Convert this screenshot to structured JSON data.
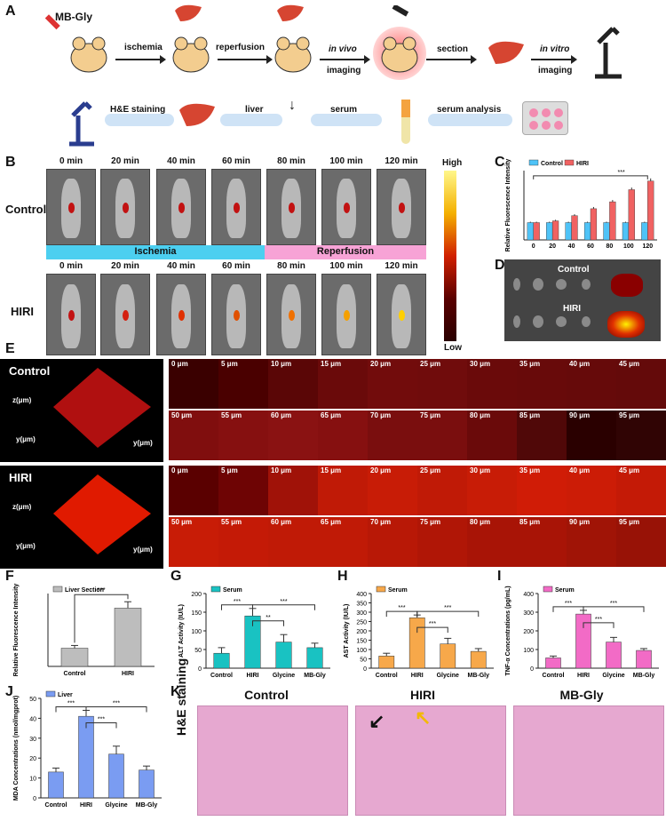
{
  "panels": {
    "A": "A",
    "B": "B",
    "C": "C",
    "D": "D",
    "E": "E",
    "F": "F",
    "G": "G",
    "H": "H",
    "I": "I",
    "J": "J",
    "K": "K"
  },
  "schematic": {
    "probe": "MB-Gly",
    "steps": [
      "ischemia",
      "reperfusion",
      "in vivo",
      "imaging",
      "section",
      "in vitro",
      "imaging"
    ],
    "bottom": [
      "H&E staining",
      "liver",
      "serum",
      "serum analysis"
    ]
  },
  "panel_b": {
    "times": [
      "0 min",
      "20 min",
      "40 min",
      "60 min",
      "80 min",
      "100 min",
      "120 min"
    ],
    "rows": [
      "Control",
      "HIRI"
    ],
    "phases": [
      "Ischemia",
      "Reperfusion"
    ],
    "scale": {
      "high": "High",
      "low": "Low"
    }
  },
  "panel_d": {
    "control": "Control",
    "hiri": "HIRI"
  },
  "panel_e": {
    "rows": [
      "Control",
      "HIRI"
    ],
    "depths": [
      "0 μm",
      "5 μm",
      "10 μm",
      "15 μm",
      "20 μm",
      "25 μm",
      "30 μm",
      "35 μm",
      "40 μm",
      "45 μm",
      "50 μm",
      "55 μm",
      "60 μm",
      "65 μm",
      "70 μm",
      "75 μm",
      "80 μm",
      "85 μm",
      "90 μm",
      "95 μm"
    ],
    "axes": {
      "z": "z(μm)",
      "y": "y(μm)",
      "ticks": [
        "0",
        "100",
        "200",
        "300",
        "400",
        "500",
        "600",
        "700"
      ]
    }
  },
  "panel_k": {
    "titles": [
      "Control",
      "HIRI",
      "MB-Gly"
    ],
    "side": "H&E staining"
  },
  "colors": {
    "control": "#4fc3f7",
    "hiri": "#f06262",
    "teal": "#19c2c2",
    "orange": "#f7a84a",
    "pink": "#f26bc6",
    "blue": "#7a9cf2",
    "gray": "#bdbdbd",
    "phase_ischemia": "#4ccff0",
    "phase_reperfusion": "#f7a3d6"
  },
  "chart_data": [
    {
      "id": "C",
      "type": "bar",
      "categories": [
        "0",
        "20",
        "40",
        "60",
        "80",
        "100",
        "120"
      ],
      "series": [
        {
          "name": "Control",
          "values": [
            1.0,
            1.0,
            1.0,
            1.0,
            1.0,
            1.0,
            1.0
          ],
          "err": [
            0.05,
            0.05,
            0.05,
            0.05,
            0.05,
            0.05,
            0.05
          ]
        },
        {
          "name": "HIRI",
          "values": [
            1.0,
            1.1,
            1.4,
            1.8,
            2.2,
            2.9,
            3.4
          ],
          "err": [
            0.05,
            0.06,
            0.08,
            0.1,
            0.1,
            0.12,
            0.15
          ]
        }
      ],
      "ylabel": "Relative Fluorescence Intensity",
      "ylim": [
        0,
        4
      ],
      "significance": "***"
    },
    {
      "id": "F",
      "type": "bar",
      "legend": "Liver Section",
      "categories": [
        "Control",
        "HIRI"
      ],
      "values": [
        1.0,
        3.2
      ],
      "err": [
        0.15,
        0.35
      ],
      "ylabel": "Relative Fluorescence Intensity",
      "ylim": [
        0,
        4
      ],
      "significance": "***"
    },
    {
      "id": "G",
      "type": "bar",
      "legend": "Serum",
      "categories": [
        "Control",
        "HIRI",
        "Glycine",
        "MB-Gly"
      ],
      "values": [
        40,
        140,
        70,
        55
      ],
      "err": [
        15,
        20,
        20,
        12
      ],
      "ylabel": "ALT Activity (IU/L)",
      "ylim": [
        0,
        200
      ],
      "yticks": [
        0,
        50,
        100,
        150,
        200
      ],
      "significance": [
        "***",
        "**",
        "***"
      ]
    },
    {
      "id": "H",
      "type": "bar",
      "legend": "Serum",
      "categories": [
        "Control",
        "HIRI",
        "Glycine",
        "MB-Gly"
      ],
      "values": [
        65,
        270,
        130,
        90
      ],
      "err": [
        15,
        15,
        30,
        15
      ],
      "ylabel": "AST Activity (IU/L)",
      "ylim": [
        0,
        400
      ],
      "yticks": [
        0,
        50,
        100,
        150,
        200,
        250,
        300,
        350,
        400
      ],
      "significance": [
        "***",
        "***",
        "***"
      ]
    },
    {
      "id": "I",
      "type": "bar",
      "legend": "Serum",
      "categories": [
        "Control",
        "HIRI",
        "Glycine",
        "MB-Gly"
      ],
      "values": [
        55,
        290,
        140,
        95
      ],
      "err": [
        10,
        20,
        25,
        10
      ],
      "ylabel": "TNF-α Concentrations (pg/mL)",
      "ylim": [
        0,
        400
      ],
      "yticks": [
        0,
        100,
        200,
        300,
        400
      ],
      "significance": [
        "***",
        "***",
        "***"
      ]
    },
    {
      "id": "J",
      "type": "bar",
      "legend": "Liver",
      "categories": [
        "Control",
        "HIRI",
        "Glycine",
        "MB-Gly"
      ],
      "values": [
        13,
        41,
        22,
        14
      ],
      "err": [
        2,
        3,
        4,
        2
      ],
      "ylabel": "MDA Concentrations (nmol/mgprot)",
      "ylim": [
        0,
        50
      ],
      "yticks": [
        0,
        10,
        20,
        30,
        40,
        50
      ],
      "significance": [
        "***",
        "***",
        "***"
      ]
    }
  ]
}
